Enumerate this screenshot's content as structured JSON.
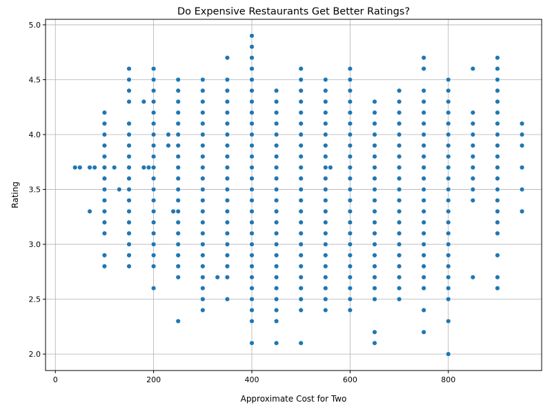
{
  "chart_data": {
    "type": "scatter",
    "title": "Do Expensive Restaurants Get Better Ratings?",
    "xlabel": "Approximate Cost for Two",
    "ylabel": "Rating",
    "xlim": [
      -20,
      990
    ],
    "ylim": [
      1.85,
      5.05
    ],
    "xticks": [
      0,
      200,
      400,
      600,
      800
    ],
    "yticks": [
      2.0,
      2.5,
      3.0,
      3.5,
      4.0,
      4.5,
      5.0
    ],
    "xtick_labels": [
      "0",
      "200",
      "400",
      "600",
      "800"
    ],
    "ytick_labels": [
      "2.0",
      "2.5",
      "3.0",
      "3.5",
      "4.0",
      "4.5",
      "5.0"
    ],
    "grid": true,
    "marker_color": "#1f77b4",
    "points": [
      [
        40,
        3.7
      ],
      [
        50,
        3.7
      ],
      [
        70,
        3.3
      ],
      [
        70,
        3.7
      ],
      [
        80,
        3.7
      ],
      [
        100,
        2.8
      ],
      [
        100,
        2.9
      ],
      [
        100,
        3.1
      ],
      [
        100,
        3.2
      ],
      [
        100,
        3.3
      ],
      [
        100,
        3.4
      ],
      [
        100,
        3.5
      ],
      [
        100,
        3.6
      ],
      [
        100,
        3.7
      ],
      [
        100,
        3.8
      ],
      [
        100,
        3.9
      ],
      [
        100,
        4.0
      ],
      [
        100,
        4.1
      ],
      [
        100,
        4.2
      ],
      [
        120,
        3.7
      ],
      [
        130,
        3.5
      ],
      [
        150,
        2.8
      ],
      [
        150,
        2.9
      ],
      [
        150,
        3.0
      ],
      [
        150,
        3.1
      ],
      [
        150,
        3.2
      ],
      [
        150,
        3.3
      ],
      [
        150,
        3.4
      ],
      [
        150,
        3.5
      ],
      [
        150,
        3.6
      ],
      [
        150,
        3.7
      ],
      [
        150,
        3.8
      ],
      [
        150,
        3.9
      ],
      [
        150,
        4.0
      ],
      [
        150,
        4.1
      ],
      [
        150,
        4.3
      ],
      [
        150,
        4.4
      ],
      [
        150,
        4.5
      ],
      [
        150,
        4.6
      ],
      [
        180,
        3.7
      ],
      [
        180,
        4.3
      ],
      [
        190,
        3.7
      ],
      [
        200,
        2.6
      ],
      [
        200,
        2.8
      ],
      [
        200,
        2.9
      ],
      [
        200,
        3.0
      ],
      [
        200,
        3.1
      ],
      [
        200,
        3.2
      ],
      [
        200,
        3.3
      ],
      [
        200,
        3.4
      ],
      [
        200,
        3.5
      ],
      [
        200,
        3.6
      ],
      [
        200,
        3.7
      ],
      [
        200,
        3.8
      ],
      [
        200,
        3.9
      ],
      [
        200,
        4.0
      ],
      [
        200,
        4.1
      ],
      [
        200,
        4.2
      ],
      [
        200,
        4.3
      ],
      [
        200,
        4.4
      ],
      [
        200,
        4.5
      ],
      [
        200,
        4.6
      ],
      [
        230,
        3.9
      ],
      [
        230,
        4.0
      ],
      [
        240,
        3.3
      ],
      [
        250,
        2.3
      ],
      [
        250,
        2.7
      ],
      [
        250,
        2.8
      ],
      [
        250,
        2.9
      ],
      [
        250,
        3.0
      ],
      [
        250,
        3.1
      ],
      [
        250,
        3.2
      ],
      [
        250,
        3.3
      ],
      [
        250,
        3.4
      ],
      [
        250,
        3.5
      ],
      [
        250,
        3.6
      ],
      [
        250,
        3.7
      ],
      [
        250,
        3.8
      ],
      [
        250,
        3.9
      ],
      [
        250,
        4.0
      ],
      [
        250,
        4.1
      ],
      [
        250,
        4.2
      ],
      [
        250,
        4.3
      ],
      [
        250,
        4.4
      ],
      [
        250,
        4.5
      ],
      [
        300,
        2.4
      ],
      [
        300,
        2.5
      ],
      [
        300,
        2.6
      ],
      [
        300,
        2.7
      ],
      [
        300,
        2.8
      ],
      [
        300,
        2.9
      ],
      [
        300,
        3.0
      ],
      [
        300,
        3.1
      ],
      [
        300,
        3.2
      ],
      [
        300,
        3.3
      ],
      [
        300,
        3.4
      ],
      [
        300,
        3.5
      ],
      [
        300,
        3.6
      ],
      [
        300,
        3.7
      ],
      [
        300,
        3.8
      ],
      [
        300,
        3.9
      ],
      [
        300,
        4.0
      ],
      [
        300,
        4.1
      ],
      [
        300,
        4.2
      ],
      [
        300,
        4.3
      ],
      [
        300,
        4.4
      ],
      [
        300,
        4.5
      ],
      [
        330,
        2.7
      ],
      [
        350,
        2.5
      ],
      [
        350,
        2.7
      ],
      [
        350,
        2.8
      ],
      [
        350,
        2.9
      ],
      [
        350,
        3.0
      ],
      [
        350,
        3.1
      ],
      [
        350,
        3.2
      ],
      [
        350,
        3.3
      ],
      [
        350,
        3.4
      ],
      [
        350,
        3.5
      ],
      [
        350,
        3.6
      ],
      [
        350,
        3.7
      ],
      [
        350,
        3.8
      ],
      [
        350,
        3.9
      ],
      [
        350,
        4.0
      ],
      [
        350,
        4.1
      ],
      [
        350,
        4.2
      ],
      [
        350,
        4.3
      ],
      [
        350,
        4.4
      ],
      [
        350,
        4.5
      ],
      [
        350,
        4.7
      ],
      [
        400,
        2.1
      ],
      [
        400,
        2.3
      ],
      [
        400,
        2.4
      ],
      [
        400,
        2.5
      ],
      [
        400,
        2.6
      ],
      [
        400,
        2.7
      ],
      [
        400,
        2.8
      ],
      [
        400,
        2.9
      ],
      [
        400,
        3.0
      ],
      [
        400,
        3.1
      ],
      [
        400,
        3.2
      ],
      [
        400,
        3.3
      ],
      [
        400,
        3.4
      ],
      [
        400,
        3.5
      ],
      [
        400,
        3.6
      ],
      [
        400,
        3.7
      ],
      [
        400,
        3.8
      ],
      [
        400,
        3.9
      ],
      [
        400,
        4.0
      ],
      [
        400,
        4.1
      ],
      [
        400,
        4.2
      ],
      [
        400,
        4.3
      ],
      [
        400,
        4.4
      ],
      [
        400,
        4.5
      ],
      [
        400,
        4.6
      ],
      [
        400,
        4.7
      ],
      [
        400,
        4.8
      ],
      [
        400,
        4.9
      ],
      [
        450,
        2.1
      ],
      [
        450,
        2.3
      ],
      [
        450,
        2.4
      ],
      [
        450,
        2.5
      ],
      [
        450,
        2.6
      ],
      [
        450,
        2.7
      ],
      [
        450,
        2.8
      ],
      [
        450,
        2.9
      ],
      [
        450,
        3.0
      ],
      [
        450,
        3.1
      ],
      [
        450,
        3.2
      ],
      [
        450,
        3.3
      ],
      [
        450,
        3.4
      ],
      [
        450,
        3.5
      ],
      [
        450,
        3.6
      ],
      [
        450,
        3.7
      ],
      [
        450,
        3.8
      ],
      [
        450,
        3.9
      ],
      [
        450,
        4.0
      ],
      [
        450,
        4.1
      ],
      [
        450,
        4.2
      ],
      [
        450,
        4.3
      ],
      [
        450,
        4.4
      ],
      [
        500,
        2.1
      ],
      [
        500,
        2.4
      ],
      [
        500,
        2.5
      ],
      [
        500,
        2.6
      ],
      [
        500,
        2.7
      ],
      [
        500,
        2.8
      ],
      [
        500,
        2.9
      ],
      [
        500,
        3.0
      ],
      [
        500,
        3.1
      ],
      [
        500,
        3.2
      ],
      [
        500,
        3.3
      ],
      [
        500,
        3.4
      ],
      [
        500,
        3.5
      ],
      [
        500,
        3.6
      ],
      [
        500,
        3.7
      ],
      [
        500,
        3.8
      ],
      [
        500,
        3.9
      ],
      [
        500,
        4.0
      ],
      [
        500,
        4.1
      ],
      [
        500,
        4.2
      ],
      [
        500,
        4.3
      ],
      [
        500,
        4.4
      ],
      [
        500,
        4.5
      ],
      [
        500,
        4.6
      ],
      [
        550,
        2.4
      ],
      [
        550,
        2.5
      ],
      [
        550,
        2.6
      ],
      [
        550,
        2.7
      ],
      [
        550,
        2.8
      ],
      [
        550,
        2.9
      ],
      [
        550,
        3.0
      ],
      [
        550,
        3.1
      ],
      [
        550,
        3.2
      ],
      [
        550,
        3.3
      ],
      [
        550,
        3.4
      ],
      [
        550,
        3.5
      ],
      [
        550,
        3.6
      ],
      [
        550,
        3.7
      ],
      [
        550,
        3.8
      ],
      [
        550,
        3.9
      ],
      [
        550,
        4.0
      ],
      [
        550,
        4.1
      ],
      [
        550,
        4.2
      ],
      [
        550,
        4.3
      ],
      [
        550,
        4.4
      ],
      [
        550,
        4.5
      ],
      [
        560,
        3.7
      ],
      [
        600,
        2.4
      ],
      [
        600,
        2.5
      ],
      [
        600,
        2.6
      ],
      [
        600,
        2.7
      ],
      [
        600,
        2.8
      ],
      [
        600,
        2.9
      ],
      [
        600,
        3.0
      ],
      [
        600,
        3.1
      ],
      [
        600,
        3.2
      ],
      [
        600,
        3.3
      ],
      [
        600,
        3.4
      ],
      [
        600,
        3.5
      ],
      [
        600,
        3.6
      ],
      [
        600,
        3.7
      ],
      [
        600,
        3.8
      ],
      [
        600,
        3.9
      ],
      [
        600,
        4.0
      ],
      [
        600,
        4.1
      ],
      [
        600,
        4.2
      ],
      [
        600,
        4.3
      ],
      [
        600,
        4.4
      ],
      [
        600,
        4.5
      ],
      [
        600,
        4.6
      ],
      [
        650,
        2.1
      ],
      [
        650,
        2.2
      ],
      [
        650,
        2.5
      ],
      [
        650,
        2.6
      ],
      [
        650,
        2.7
      ],
      [
        650,
        2.8
      ],
      [
        650,
        2.9
      ],
      [
        650,
        3.0
      ],
      [
        650,
        3.1
      ],
      [
        650,
        3.2
      ],
      [
        650,
        3.3
      ],
      [
        650,
        3.4
      ],
      [
        650,
        3.5
      ],
      [
        650,
        3.6
      ],
      [
        650,
        3.7
      ],
      [
        650,
        3.8
      ],
      [
        650,
        3.9
      ],
      [
        650,
        4.0
      ],
      [
        650,
        4.1
      ],
      [
        650,
        4.2
      ],
      [
        650,
        4.3
      ],
      [
        700,
        2.5
      ],
      [
        700,
        2.6
      ],
      [
        700,
        2.7
      ],
      [
        700,
        2.8
      ],
      [
        700,
        2.9
      ],
      [
        700,
        3.0
      ],
      [
        700,
        3.1
      ],
      [
        700,
        3.2
      ],
      [
        700,
        3.3
      ],
      [
        700,
        3.4
      ],
      [
        700,
        3.5
      ],
      [
        700,
        3.6
      ],
      [
        700,
        3.7
      ],
      [
        700,
        3.8
      ],
      [
        700,
        3.9
      ],
      [
        700,
        4.0
      ],
      [
        700,
        4.1
      ],
      [
        700,
        4.2
      ],
      [
        700,
        4.3
      ],
      [
        700,
        4.4
      ],
      [
        750,
        2.2
      ],
      [
        750,
        2.4
      ],
      [
        750,
        2.6
      ],
      [
        750,
        2.7
      ],
      [
        750,
        2.8
      ],
      [
        750,
        2.9
      ],
      [
        750,
        3.0
      ],
      [
        750,
        3.1
      ],
      [
        750,
        3.2
      ],
      [
        750,
        3.3
      ],
      [
        750,
        3.4
      ],
      [
        750,
        3.5
      ],
      [
        750,
        3.6
      ],
      [
        750,
        3.7
      ],
      [
        750,
        3.8
      ],
      [
        750,
        3.9
      ],
      [
        750,
        4.0
      ],
      [
        750,
        4.1
      ],
      [
        750,
        4.2
      ],
      [
        750,
        4.3
      ],
      [
        750,
        4.4
      ],
      [
        750,
        4.6
      ],
      [
        750,
        4.7
      ],
      [
        800,
        2.0
      ],
      [
        800,
        2.3
      ],
      [
        800,
        2.5
      ],
      [
        800,
        2.6
      ],
      [
        800,
        2.7
      ],
      [
        800,
        2.8
      ],
      [
        800,
        2.9
      ],
      [
        800,
        3.0
      ],
      [
        800,
        3.1
      ],
      [
        800,
        3.2
      ],
      [
        800,
        3.3
      ],
      [
        800,
        3.4
      ],
      [
        800,
        3.5
      ],
      [
        800,
        3.6
      ],
      [
        800,
        3.7
      ],
      [
        800,
        3.8
      ],
      [
        800,
        3.9
      ],
      [
        800,
        4.0
      ],
      [
        800,
        4.1
      ],
      [
        800,
        4.2
      ],
      [
        800,
        4.3
      ],
      [
        800,
        4.4
      ],
      [
        800,
        4.5
      ],
      [
        850,
        2.7
      ],
      [
        850,
        3.4
      ],
      [
        850,
        3.5
      ],
      [
        850,
        3.6
      ],
      [
        850,
        3.7
      ],
      [
        850,
        3.8
      ],
      [
        850,
        3.9
      ],
      [
        850,
        4.0
      ],
      [
        850,
        4.1
      ],
      [
        850,
        4.2
      ],
      [
        850,
        4.6
      ],
      [
        900,
        2.6
      ],
      [
        900,
        2.7
      ],
      [
        900,
        2.9
      ],
      [
        900,
        3.1
      ],
      [
        900,
        3.2
      ],
      [
        900,
        3.3
      ],
      [
        900,
        3.4
      ],
      [
        900,
        3.5
      ],
      [
        900,
        3.6
      ],
      [
        900,
        3.7
      ],
      [
        900,
        3.8
      ],
      [
        900,
        3.9
      ],
      [
        900,
        4.0
      ],
      [
        900,
        4.1
      ],
      [
        900,
        4.2
      ],
      [
        900,
        4.3
      ],
      [
        900,
        4.4
      ],
      [
        900,
        4.5
      ],
      [
        900,
        4.6
      ],
      [
        900,
        4.7
      ],
      [
        950,
        3.3
      ],
      [
        950,
        3.5
      ],
      [
        950,
        3.7
      ],
      [
        950,
        3.9
      ],
      [
        950,
        4.0
      ],
      [
        950,
        4.1
      ]
    ]
  }
}
